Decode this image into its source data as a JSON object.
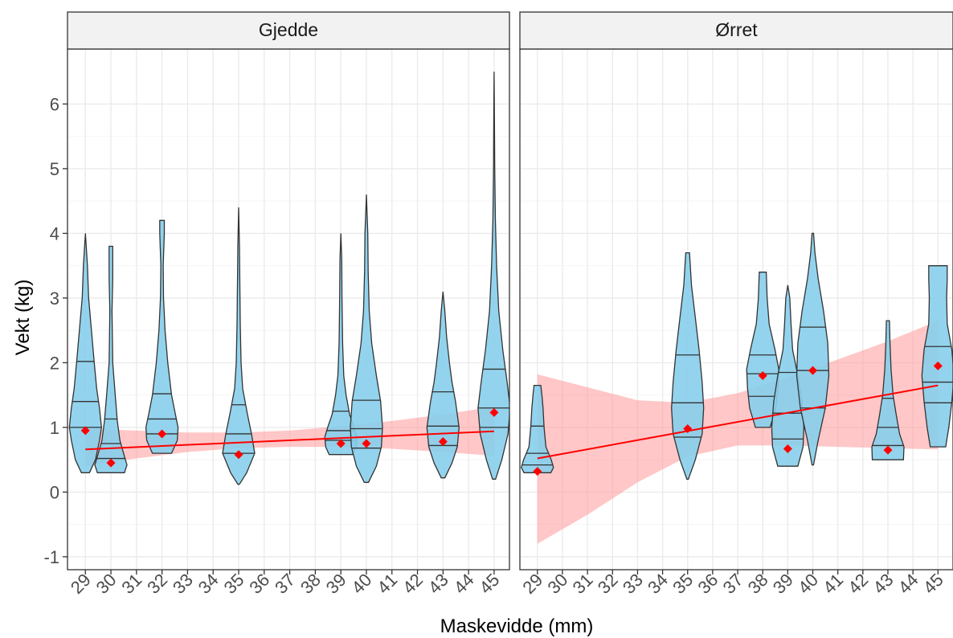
{
  "chart_data": {
    "type": "violin",
    "xlabel": "Maskevidde (mm)",
    "ylabel": "Vekt (kg)",
    "x_ticks": [
      29,
      30,
      31,
      32,
      33,
      34,
      35,
      36,
      37,
      38,
      39,
      40,
      41,
      42,
      43,
      44,
      45
    ],
    "xlim": [
      28.3,
      45.6
    ],
    "ylim": [
      -1.2,
      6.85
    ],
    "y_ticks": [
      -1,
      0,
      1,
      2,
      3,
      4,
      5,
      6
    ],
    "grid": true,
    "legend": "none",
    "colors": {
      "violin_fill": "#87ceeb",
      "violin_stroke": "#333333",
      "mean_marker": "#ff0000",
      "trend_line": "#ff0000",
      "confidence_band": "#ff9999",
      "panel_border": "#333333",
      "strip_fill": "#f2f2f2",
      "grid_major": "#ebebeb"
    },
    "panels": [
      {
        "title": "Gjedde",
        "violins": [
          {
            "x": 29,
            "min": 0.3,
            "max": 4.0,
            "quartiles": [
              1.0,
              1.4,
              2.02
            ],
            "mean": 0.95,
            "shape": [
              [
                0.3,
                0.1
              ],
              [
                0.5,
                0.25
              ],
              [
                0.8,
                0.35
              ],
              [
                1.0,
                0.4
              ],
              [
                1.3,
                0.35
              ],
              [
                1.6,
                0.28
              ],
              [
                2.0,
                0.22
              ],
              [
                2.5,
                0.15
              ],
              [
                3.0,
                0.08
              ],
              [
                3.5,
                0.05
              ],
              [
                4.0,
                0.0
              ]
            ]
          },
          {
            "x": 30,
            "min": 0.3,
            "max": 3.8,
            "quartiles": [
              0.52,
              0.75,
              1.13
            ],
            "mean": 0.45,
            "shape": [
              [
                0.3,
                0.38
              ],
              [
                0.42,
                0.45
              ],
              [
                0.55,
                0.38
              ],
              [
                0.8,
                0.25
              ],
              [
                1.1,
                0.18
              ],
              [
                1.5,
                0.12
              ],
              [
                2.0,
                0.05
              ],
              [
                2.8,
                0.03
              ],
              [
                3.3,
                0.05
              ],
              [
                3.6,
                0.05
              ],
              [
                3.8,
                0.05
              ]
            ]
          },
          {
            "x": 32,
            "min": 0.6,
            "max": 4.2,
            "quartiles": [
              0.9,
              1.13,
              1.52
            ],
            "mean": 0.9,
            "shape": [
              [
                0.6,
                0.25
              ],
              [
                0.8,
                0.4
              ],
              [
                1.0,
                0.42
              ],
              [
                1.2,
                0.35
              ],
              [
                1.5,
                0.25
              ],
              [
                2.0,
                0.15
              ],
              [
                2.5,
                0.08
              ],
              [
                3.0,
                0.04
              ],
              [
                3.5,
                0.03
              ],
              [
                4.0,
                0.06
              ],
              [
                4.2,
                0.06
              ]
            ]
          },
          {
            "x": 35,
            "min": 0.12,
            "max": 4.4,
            "quartiles": [
              0.6,
              0.9,
              1.35
            ],
            "mean": 0.58,
            "shape": [
              [
                0.12,
                0.02
              ],
              [
                0.3,
                0.2
              ],
              [
                0.6,
                0.4
              ],
              [
                0.9,
                0.32
              ],
              [
                1.2,
                0.22
              ],
              [
                1.6,
                0.1
              ],
              [
                2.0,
                0.06
              ],
              [
                2.6,
                0.04
              ],
              [
                3.2,
                0.03
              ],
              [
                3.8,
                0.02
              ],
              [
                4.4,
                0.0
              ]
            ]
          },
          {
            "x": 39,
            "min": 0.58,
            "max": 4.0,
            "quartiles": [
              0.8,
              0.95,
              1.25
            ],
            "mean": 0.75,
            "shape": [
              [
                0.58,
                0.4
              ],
              [
                0.7,
                0.52
              ],
              [
                0.85,
                0.55
              ],
              [
                1.0,
                0.45
              ],
              [
                1.2,
                0.3
              ],
              [
                1.5,
                0.18
              ],
              [
                1.8,
                0.1
              ],
              [
                2.3,
                0.06
              ],
              [
                3.0,
                0.04
              ],
              [
                3.6,
                0.03
              ],
              [
                4.0,
                0.0
              ]
            ]
          },
          {
            "x": 40,
            "min": 0.15,
            "max": 4.6,
            "quartiles": [
              0.68,
              0.98,
              1.42
            ],
            "mean": 0.75,
            "shape": [
              [
                0.15,
                0.06
              ],
              [
                0.4,
                0.28
              ],
              [
                0.7,
                0.42
              ],
              [
                1.0,
                0.45
              ],
              [
                1.4,
                0.4
              ],
              [
                1.8,
                0.28
              ],
              [
                2.3,
                0.15
              ],
              [
                2.8,
                0.08
              ],
              [
                3.4,
                0.05
              ],
              [
                4.0,
                0.04
              ],
              [
                4.6,
                0.0
              ]
            ]
          },
          {
            "x": 43,
            "min": 0.22,
            "max": 3.1,
            "quartiles": [
              0.72,
              1.02,
              1.55
            ],
            "mean": 0.78,
            "shape": [
              [
                0.22,
                0.05
              ],
              [
                0.45,
                0.25
              ],
              [
                0.7,
                0.4
              ],
              [
                1.0,
                0.45
              ],
              [
                1.4,
                0.35
              ],
              [
                1.7,
                0.25
              ],
              [
                2.0,
                0.18
              ],
              [
                2.4,
                0.1
              ],
              [
                2.8,
                0.05
              ],
              [
                3.1,
                0.0
              ]
            ]
          },
          {
            "x": 45,
            "min": 0.2,
            "max": 6.5,
            "quartiles": [
              1.0,
              1.3,
              1.9
            ],
            "mean": 1.23,
            "shape": [
              [
                0.2,
                0.05
              ],
              [
                0.5,
                0.25
              ],
              [
                0.9,
                0.45
              ],
              [
                1.3,
                0.52
              ],
              [
                1.7,
                0.42
              ],
              [
                2.2,
                0.28
              ],
              [
                2.8,
                0.15
              ],
              [
                3.5,
                0.08
              ],
              [
                4.2,
                0.04
              ],
              [
                5.0,
                0.02
              ],
              [
                5.8,
                0.01
              ],
              [
                6.5,
                0.0
              ]
            ]
          }
        ],
        "trend": {
          "x": [
            29,
            45
          ],
          "y": [
            0.66,
            0.94
          ]
        },
        "band": {
          "x": [
            29,
            31,
            33,
            35,
            37,
            39,
            41,
            43,
            45
          ],
          "lower": [
            0.4,
            0.52,
            0.62,
            0.68,
            0.7,
            0.7,
            0.67,
            0.62,
            0.56
          ],
          "upper": [
            0.98,
            0.95,
            0.92,
            0.92,
            0.95,
            1.02,
            1.1,
            1.2,
            1.32
          ]
        }
      },
      {
        "title": "Ørret",
        "violins": [
          {
            "x": 29,
            "min": 0.3,
            "max": 1.65,
            "quartiles": [
              0.42,
              0.6,
              1.02
            ],
            "mean": 0.32,
            "shape": [
              [
                0.3,
                0.6
              ],
              [
                0.38,
                0.72
              ],
              [
                0.5,
                0.62
              ],
              [
                0.7,
                0.38
              ],
              [
                1.0,
                0.3
              ],
              [
                1.3,
                0.25
              ],
              [
                1.5,
                0.2
              ],
              [
                1.65,
                0.15
              ]
            ]
          },
          {
            "x": 35,
            "min": 0.2,
            "max": 3.7,
            "quartiles": [
              0.85,
              1.38,
              2.12
            ],
            "mean": 0.98,
            "shape": [
              [
                0.2,
                0.02
              ],
              [
                0.5,
                0.2
              ],
              [
                0.9,
                0.38
              ],
              [
                1.3,
                0.42
              ],
              [
                1.7,
                0.38
              ],
              [
                2.2,
                0.3
              ],
              [
                2.7,
                0.2
              ],
              [
                3.2,
                0.1
              ],
              [
                3.7,
                0.05
              ]
            ]
          },
          {
            "x": 38,
            "min": 1.0,
            "max": 3.4,
            "quartiles": [
              1.48,
              1.83,
              2.12
            ],
            "mean": 1.8,
            "shape": [
              [
                1.0,
                0.25
              ],
              [
                1.3,
                0.45
              ],
              [
                1.6,
                0.52
              ],
              [
                1.9,
                0.55
              ],
              [
                2.2,
                0.42
              ],
              [
                2.6,
                0.22
              ],
              [
                3.0,
                0.15
              ],
              [
                3.4,
                0.12
              ]
            ]
          },
          {
            "x": 39,
            "min": 0.4,
            "max": 3.2,
            "quartiles": [
              0.82,
              1.22,
              1.85
            ],
            "mean": 0.67,
            "shape": [
              [
                0.4,
                0.25
              ],
              [
                0.7,
                0.38
              ],
              [
                1.0,
                0.4
              ],
              [
                1.4,
                0.35
              ],
              [
                1.8,
                0.25
              ],
              [
                2.2,
                0.12
              ],
              [
                2.6,
                0.08
              ],
              [
                3.0,
                0.05
              ],
              [
                3.2,
                0.0
              ]
            ]
          },
          {
            "x": 40,
            "min": 0.42,
            "max": 4.0,
            "quartiles": [
              1.3,
              1.88,
              2.55
            ],
            "mean": 1.88,
            "shape": [
              [
                0.42,
                0.02
              ],
              [
                0.8,
                0.15
              ],
              [
                1.3,
                0.35
              ],
              [
                1.8,
                0.45
              ],
              [
                2.3,
                0.42
              ],
              [
                2.8,
                0.3
              ],
              [
                3.3,
                0.15
              ],
              [
                3.7,
                0.06
              ],
              [
                4.0,
                0.02
              ]
            ]
          },
          {
            "x": 43,
            "min": 0.5,
            "max": 2.65,
            "quartiles": [
              0.72,
              1.0,
              1.45
            ],
            "mean": 0.65,
            "shape": [
              [
                0.5,
                0.6
              ],
              [
                0.7,
                0.62
              ],
              [
                0.9,
                0.45
              ],
              [
                1.2,
                0.32
              ],
              [
                1.5,
                0.2
              ],
              [
                1.9,
                0.12
              ],
              [
                2.3,
                0.08
              ],
              [
                2.65,
                0.06
              ]
            ]
          },
          {
            "x": 45,
            "min": 0.7,
            "max": 3.5,
            "quartiles": [
              1.38,
              1.7,
              2.25
            ],
            "mean": 1.95,
            "shape": [
              [
                0.7,
                0.25
              ],
              [
                1.0,
                0.35
              ],
              [
                1.4,
                0.45
              ],
              [
                1.8,
                0.52
              ],
              [
                2.2,
                0.45
              ],
              [
                2.6,
                0.3
              ],
              [
                3.0,
                0.28
              ],
              [
                3.3,
                0.3
              ],
              [
                3.5,
                0.3
              ]
            ]
          }
        ],
        "trend": {
          "x": [
            29,
            45
          ],
          "y": [
            0.52,
            1.65
          ]
        },
        "band": {
          "x": [
            29,
            31,
            33,
            35,
            37,
            39,
            41,
            43,
            45
          ],
          "lower": [
            -0.8,
            -0.35,
            0.15,
            0.55,
            0.72,
            0.72,
            0.7,
            0.68,
            0.66
          ],
          "upper": [
            1.82,
            1.62,
            1.42,
            1.38,
            1.53,
            1.78,
            2.05,
            2.33,
            2.65
          ]
        }
      }
    ]
  }
}
